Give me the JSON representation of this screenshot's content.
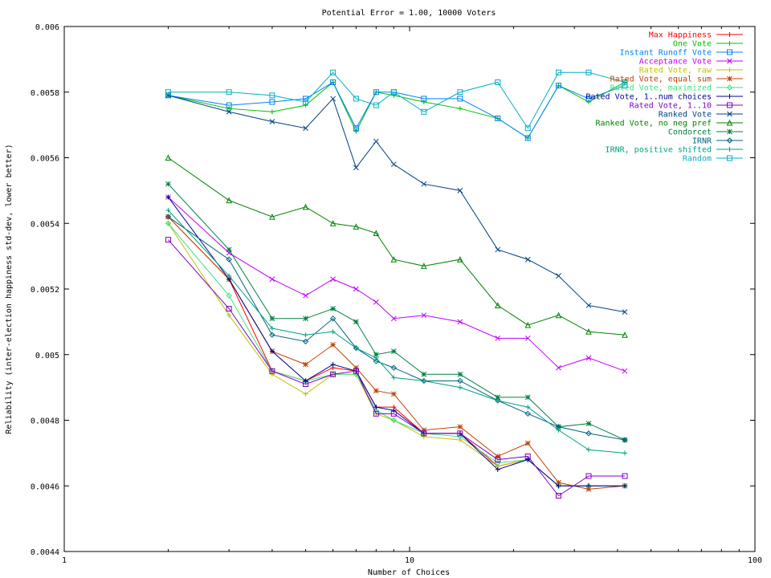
{
  "chart_data": {
    "type": "line",
    "title": "Potential Error = 1.00, 10000 Voters",
    "xlabel": "Number of Choices",
    "ylabel": "Reliability (inter-election happiness std-dev, lower better)",
    "xscale": "log",
    "xlim": [
      1,
      100
    ],
    "ylim": [
      0.0044,
      0.006
    ],
    "xticks": [
      1,
      10,
      100
    ],
    "xtick_labels": [
      "1",
      "10",
      "100"
    ],
    "yticks": [
      0.0044,
      0.0046,
      0.0048,
      0.005,
      0.0052,
      0.0054,
      0.0056,
      0.0058,
      0.006
    ],
    "ytick_labels": [
      "0.0044",
      "0.0046",
      "0.0048",
      "0.005",
      "0.0052",
      "0.0054",
      "0.0056",
      "0.0058",
      "0.006"
    ],
    "grid": false,
    "legend_position": "top-right",
    "x": [
      2,
      3,
      4,
      5,
      6,
      7,
      8,
      9,
      11,
      14,
      18,
      22,
      27,
      33,
      42
    ],
    "series": [
      {
        "name": "Max Happiness",
        "color": "#ff0000",
        "marker": "plus",
        "values": [
          0.00542,
          0.00523,
          0.00495,
          0.00492,
          0.00496,
          0.00495,
          0.00484,
          0.00484,
          0.00476,
          0.00476,
          0.00466,
          0.00468,
          0.0046,
          0.0046,
          0.0046
        ]
      },
      {
        "name": "One Vote",
        "color": "#00c000",
        "marker": "plus",
        "values": [
          0.00579,
          0.00575,
          0.00574,
          0.00576,
          0.00583,
          0.00568,
          0.0058,
          0.00579,
          0.00577,
          0.00575,
          0.00572,
          0.00566,
          0.00582,
          0.00577,
          0.00583
        ]
      },
      {
        "name": "Instant Runoff Vote",
        "color": "#0080ff",
        "marker": "square",
        "values": [
          0.00579,
          0.00576,
          0.00577,
          0.00578,
          0.00583,
          0.00569,
          0.0058,
          0.0058,
          0.00578,
          0.00578,
          0.00572,
          0.00566,
          0.00582,
          0.00578,
          0.00582
        ]
      },
      {
        "name": "Acceptance Vote",
        "color": "#c000ff",
        "marker": "x",
        "values": [
          0.00548,
          0.00531,
          0.00523,
          0.00518,
          0.00523,
          0.0052,
          0.00516,
          0.00511,
          0.00512,
          0.0051,
          0.00505,
          0.00505,
          0.00496,
          0.00499,
          0.00495
        ]
      },
      {
        "name": "Rated Vote, raw",
        "color": "#c0c000",
        "marker": "plus",
        "values": [
          0.0054,
          0.00512,
          0.00494,
          0.00488,
          0.00494,
          0.00494,
          0.00482,
          0.0048,
          0.00475,
          0.00474,
          0.00466,
          0.00468,
          0.0046,
          0.0046,
          0.0046
        ]
      },
      {
        "name": "Rated Vote, equal sum",
        "color": "#c04000",
        "marker": "asterisk",
        "values": [
          0.00542,
          0.00523,
          0.00501,
          0.00497,
          0.00503,
          0.00496,
          0.00489,
          0.00488,
          0.00477,
          0.00478,
          0.00469,
          0.00473,
          0.00461,
          0.00459,
          0.0046
        ]
      },
      {
        "name": "Rated Vote, maximized",
        "color": "#40e080",
        "marker": "diamond",
        "values": [
          0.0054,
          0.00518,
          0.00495,
          0.00492,
          0.00494,
          0.00494,
          0.00483,
          0.0048,
          0.00476,
          0.00475,
          0.00467,
          0.00468,
          0.0046,
          0.0046,
          0.0046
        ]
      },
      {
        "name": "Rated Vote, 1..num choices",
        "color": "#000090",
        "marker": "plus",
        "values": [
          0.00548,
          0.00523,
          0.00501,
          0.00492,
          0.00497,
          0.00495,
          0.00484,
          0.00483,
          0.00476,
          0.00476,
          0.00465,
          0.00468,
          0.0046,
          0.0046,
          0.0046
        ]
      },
      {
        "name": "Rated Vote, 1..10",
        "color": "#8000c0",
        "marker": "square",
        "values": [
          0.00535,
          0.00514,
          0.00495,
          0.00491,
          0.00494,
          0.00495,
          0.00482,
          0.00482,
          0.00476,
          0.00476,
          0.00468,
          0.00469,
          0.00457,
          0.00463,
          0.00463
        ]
      },
      {
        "name": "Ranked Vote",
        "color": "#004080",
        "marker": "x",
        "values": [
          0.00579,
          0.00574,
          0.00571,
          0.00569,
          0.00578,
          0.00557,
          0.00565,
          0.00558,
          0.00552,
          0.0055,
          0.00532,
          0.00529,
          0.00524,
          0.00515,
          0.00513
        ]
      },
      {
        "name": "Ranked Vote, no neg pref",
        "color": "#008000",
        "marker": "triangle",
        "values": [
          0.0056,
          0.00547,
          0.00542,
          0.00545,
          0.0054,
          0.00539,
          0.00537,
          0.00529,
          0.00527,
          0.00529,
          0.00515,
          0.00509,
          0.00512,
          0.00507,
          0.00506
        ]
      },
      {
        "name": "Condorcet",
        "color": "#008040",
        "marker": "asterisk",
        "values": [
          0.00552,
          0.00532,
          0.00511,
          0.00511,
          0.00514,
          0.0051,
          0.005,
          0.00501,
          0.00494,
          0.00494,
          0.00487,
          0.00487,
          0.00478,
          0.00479,
          0.00474
        ]
      },
      {
        "name": "IRNR",
        "color": "#006080",
        "marker": "diamond",
        "values": [
          0.00542,
          0.00529,
          0.00506,
          0.00504,
          0.00511,
          0.00502,
          0.00498,
          0.00496,
          0.00492,
          0.00492,
          0.00486,
          0.00482,
          0.00478,
          0.00476,
          0.00474
        ]
      },
      {
        "name": "IRNR, positive shifted",
        "color": "#00a080",
        "marker": "plus",
        "values": [
          0.00544,
          0.00524,
          0.00508,
          0.00506,
          0.00507,
          0.00502,
          0.00499,
          0.00493,
          0.00492,
          0.0049,
          0.00486,
          0.00484,
          0.00477,
          0.00471,
          0.0047
        ]
      },
      {
        "name": "Random",
        "color": "#00b0c0",
        "marker": "square",
        "values": [
          0.0058,
          0.0058,
          0.00579,
          0.00577,
          0.00586,
          0.00578,
          0.00576,
          0.0058,
          0.00574,
          0.0058,
          0.00583,
          0.00569,
          0.00586,
          0.00586,
          0.00583
        ]
      }
    ]
  }
}
